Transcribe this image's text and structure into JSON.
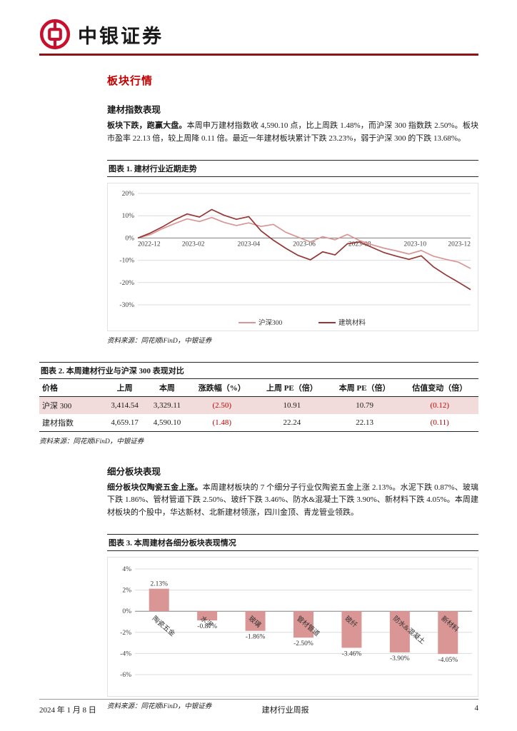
{
  "colors": {
    "brand_red": "#c8102e",
    "header_rule": "#8e1216",
    "section_heading": "#c00000",
    "negative_value": "#c00000",
    "table_row_highlight": "#f2dcdb",
    "bar_fill": "#d99694"
  },
  "header": {
    "brand_name": "中银证券"
  },
  "page": {
    "section_title": "板块行情",
    "sub1": {
      "heading": "建材指数表现",
      "lead": "板块下跌，跑赢大盘。",
      "body": "本周申万建材指数收 4,590.10 点，比上周跌 1.48%，而沪深 300 指数跌 2.50%。板块市盈率 22.13 倍，较上周降 0.11 倍。最近一年建材板块累计下跌 23.23%，弱于沪深 300 的下跌 13.68%。"
    },
    "sub2": {
      "heading": "细分板块表现",
      "lead": "细分板块仅陶瓷五金上涨。",
      "body": "本周建材板块的 7 个细分子行业仅陶瓷五金上涨 2.13%。水泥下跌 0.87%、玻璃下跌 1.86%、管材管道下跌 2.50%、玻纤下跌 3.46%、防水&混凝土下跌 3.90%、新材料下跌 4.05%。本周建材板块的个股中，华达新材、北新建材领涨，四川金顶、青龙管业领跌。"
    }
  },
  "figures": {
    "fig1": {
      "label": "图表 1. 建材行业近期走势",
      "source": "资料来源：同花顺iFinD，中银证券"
    },
    "fig2": {
      "label": "图表 2. 本周建材行业与沪深 300 表现对比",
      "source": "资料来源：同花顺iFinD，中银证券",
      "table": {
        "headers": [
          "价格",
          "上周",
          "本周",
          "涨跌幅（%）",
          "上周 PE（倍）",
          "本周 PE（倍）",
          "估值变动（倍）"
        ],
        "rows": [
          [
            "沪深 300",
            "3,414.54",
            "3,329.11",
            "(2.50)",
            "10.91",
            "10.79",
            "(0.12)"
          ],
          [
            "建材指数",
            "4,659.17",
            "4,590.10",
            "(1.48)",
            "22.24",
            "22.13",
            "(0.11)"
          ]
        ]
      }
    },
    "fig3": {
      "label": "图表 3. 本周建材各细分板块表现情况",
      "source": "资料来源：同花顺iFinD，中银证券"
    }
  },
  "footer": {
    "date": "2024 年 1 月 8 日",
    "report_title": "建材行业周报",
    "page_number": "4"
  },
  "chart_data": [
    {
      "type": "line",
      "title": "建材行业近期走势",
      "xlabel": "",
      "ylabel": "",
      "ylim": [
        -30,
        20
      ],
      "y_ticks": [
        20,
        10,
        0,
        -10,
        -20,
        -30
      ],
      "y_tick_labels": [
        "20%",
        "10%",
        "0%",
        "-10%",
        "-20%",
        "-30%"
      ],
      "x_tick_labels": [
        "2022-12",
        "2023-02",
        "2023-04",
        "2023-06",
        "2023-08",
        "2023-10",
        "2023-12"
      ],
      "grid": true,
      "legend_position": "bottom",
      "series": [
        {
          "name": "沪深300",
          "color": "#d99694",
          "values": [
            0,
            1.5,
            4.2,
            6.5,
            8.6,
            7.4,
            9.2,
            7.0,
            5.6,
            6.8,
            5.2,
            6.1,
            2.6,
            0.4,
            -1.8,
            0.6,
            -0.8,
            1.6,
            -1.2,
            -3.0,
            -4.6,
            -5.8,
            -7.2,
            -5.6,
            -8.2,
            -9.6,
            -10.8,
            -13.7
          ]
        },
        {
          "name": "建筑材料",
          "color": "#953735",
          "values": [
            0,
            2.2,
            5.0,
            8.2,
            10.8,
            9.4,
            12.8,
            10.2,
            8.4,
            9.6,
            3.2,
            -1.0,
            -4.6,
            -7.8,
            -9.8,
            -6.2,
            -7.6,
            -2.6,
            -1.8,
            -4.2,
            -6.6,
            -8.2,
            -9.6,
            -8.0,
            -13.0,
            -16.6,
            -19.8,
            -23.2
          ]
        }
      ]
    },
    {
      "type": "bar",
      "title": "本周建材各细分板块表现情况",
      "xlabel": "",
      "ylabel": "",
      "categories": [
        "陶瓷五金",
        "水泥",
        "玻璃",
        "管材管道",
        "玻纤",
        "防水&混凝土",
        "新材料"
      ],
      "values": [
        2.13,
        -0.87,
        -1.86,
        -2.5,
        -3.46,
        -3.9,
        -4.05
      ],
      "value_labels": [
        "2.13%",
        "-0.87%",
        "-1.86%",
        "-2.50%",
        "-3.46%",
        "-3.90%",
        "-4.05%"
      ],
      "ylim": [
        -6,
        4
      ],
      "y_ticks": [
        4,
        2,
        0,
        -2,
        -4,
        -6
      ],
      "y_tick_labels": [
        "4%",
        "2%",
        "0%",
        "-2%",
        "-4%",
        "-6%"
      ],
      "grid": true,
      "bar_color": "#d99694"
    }
  ]
}
